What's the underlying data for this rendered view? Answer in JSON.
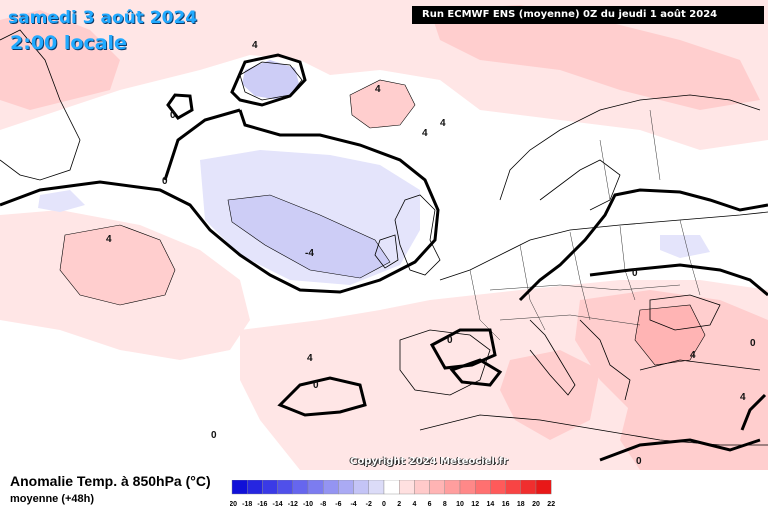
{
  "header": {
    "date": "samedi 3 août 2024",
    "time": "2:00 locale",
    "run_info": "Run ECMWF ENS (moyenne) 0Z du jeudi 1 août 2024"
  },
  "copyright": "Copyright 2024 Meteociel.fr",
  "legend": {
    "title": "Anomalie Temp. à 850hPa (°C)",
    "subtitle": "moyenne   (+48h)",
    "scale_labels": [
      "-20",
      "-18",
      "-16",
      "-14",
      "-12",
      "-10",
      "-8",
      "-6",
      "-4",
      "-2",
      "0",
      "2",
      "4",
      "6",
      "8",
      "10",
      "12",
      "14",
      "16",
      "18",
      "20",
      "22"
    ],
    "scale_colors": [
      "#1010d8",
      "#2626e0",
      "#3a3ae6",
      "#5050ea",
      "#6666ee",
      "#7c7cf0",
      "#9494f2",
      "#aaaaf4",
      "#c4c4f6",
      "#dcdcf8",
      "#ffffff",
      "#ffe0e0",
      "#ffcaca",
      "#ffb4b4",
      "#ff9e9e",
      "#ff8888",
      "#ff7070",
      "#ff5a5a",
      "#f84444",
      "#f02e2e",
      "#e81818"
    ]
  },
  "contour_labels": [
    "4",
    "4",
    "4",
    "0",
    "0",
    "4",
    "-4",
    "4",
    "0",
    "4",
    "0",
    "0",
    "4",
    "0",
    "0",
    "4",
    "0"
  ],
  "colors": {
    "warm_light": "#ffe6e6",
    "warm": "#ffcece",
    "warm_strong": "#ffb4b4",
    "cold_light": "#e4e4fb",
    "cold": "#cdcdf6",
    "cold_strong": "#b8b8f2"
  }
}
